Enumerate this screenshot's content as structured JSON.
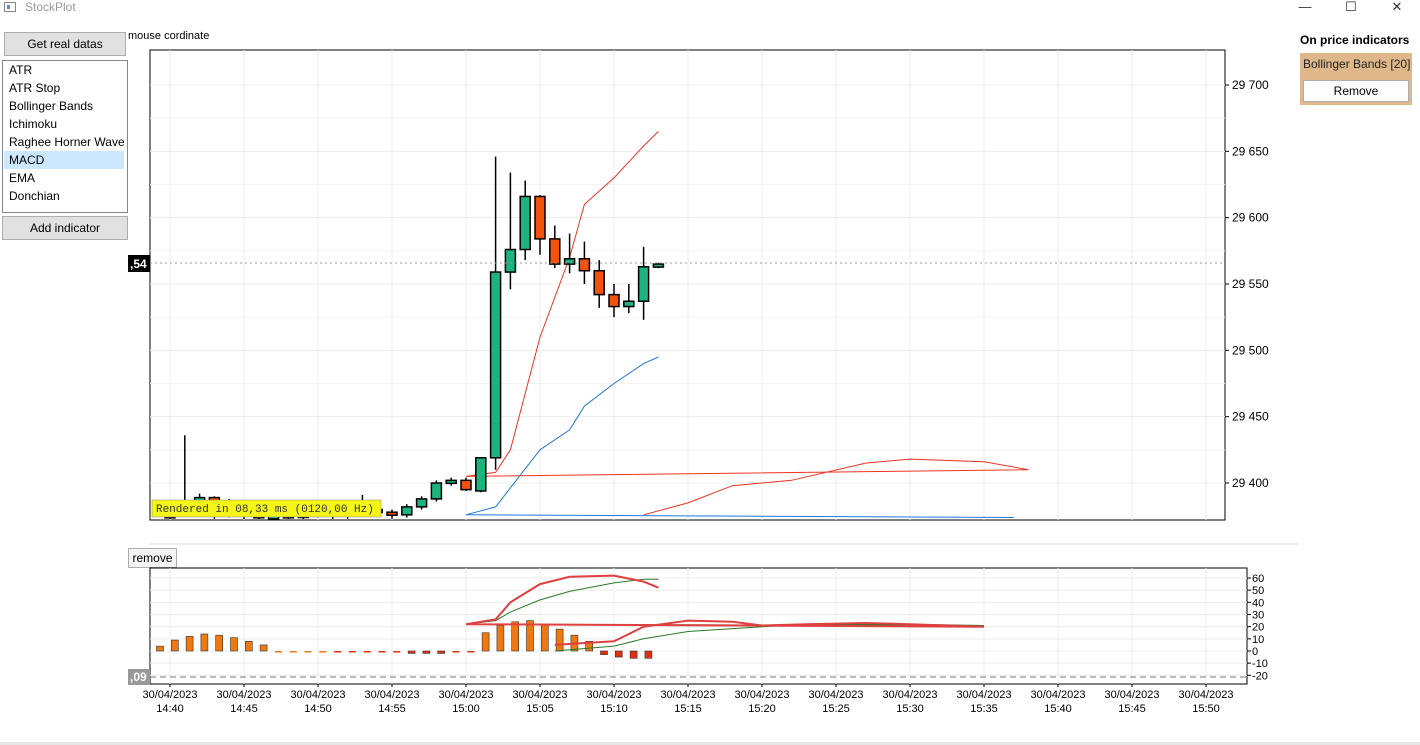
{
  "window": {
    "title": "StockPlot",
    "minimize": "—",
    "maximize": "☐",
    "close": "✕"
  },
  "toolbar": {
    "get_data_label": "Get real datas",
    "mouse_label": "mouse cordinate"
  },
  "indicator_list": {
    "items": [
      "ATR",
      "ATR Stop",
      "Bollinger Bands",
      "Ichimoku",
      "Raghee Horner Wave",
      "MACD",
      "EMA",
      "Donchian"
    ],
    "selected": "MACD",
    "add_label": "Add indicator"
  },
  "side_panel": {
    "title": "On price indicators",
    "indicator_name": "Bollinger Bands [20]",
    "remove_label": "Remove"
  },
  "sub_panel": {
    "remove_label": "remove"
  },
  "main_chart": {
    "cursor_price_label": ",54",
    "render_stats": "Rendered in 08,33 ms (0120,00 Hz)",
    "y_ticks": [
      "29 700",
      "29 650",
      "29 600",
      "29 550",
      "29 500",
      "29 450",
      "29 400"
    ]
  },
  "sub_chart": {
    "cursor_label": ",09",
    "y_ticks": [
      "60",
      "50",
      "40",
      "30",
      "20",
      "10",
      "0",
      "-10",
      "-20"
    ]
  },
  "x_axis": {
    "labels": [
      {
        "date": "30/04/2023",
        "time": "14:40"
      },
      {
        "date": "30/04/2023",
        "time": "14:45"
      },
      {
        "date": "30/04/2023",
        "time": "14:50"
      },
      {
        "date": "30/04/2023",
        "time": "14:55"
      },
      {
        "date": "30/04/2023",
        "time": "15:00"
      },
      {
        "date": "30/04/2023",
        "time": "15:05"
      },
      {
        "date": "30/04/2023",
        "time": "15:10"
      },
      {
        "date": "30/04/2023",
        "time": "15:15"
      },
      {
        "date": "30/04/2023",
        "time": "15:20"
      },
      {
        "date": "30/04/2023",
        "time": "15:25"
      },
      {
        "date": "30/04/2023",
        "time": "15:30"
      },
      {
        "date": "30/04/2023",
        "time": "15:35"
      },
      {
        "date": "30/04/2023",
        "time": "15:40"
      },
      {
        "date": "30/04/2023",
        "time": "15:45"
      },
      {
        "date": "30/04/2023",
        "time": "15:50"
      }
    ]
  },
  "colors": {
    "bull": "#1db27e",
    "bear": "#f2520c",
    "bb_upper": "#ee3322",
    "bb_lower": "#2277dd",
    "macd_line": "#e04040",
    "signal_line": "#2a7a2a",
    "hist_pos": "#f07810",
    "hist_neg": "#e03010",
    "render_bg": "#f5f51a",
    "panel_bg": "#deb88a"
  },
  "chart_data": [
    {
      "type": "candlestick",
      "title": "",
      "ylim": [
        29375,
        29728
      ],
      "candles": [
        {
          "t": "14:40",
          "o": 29376,
          "h": 29376,
          "l": 29372,
          "c": 29375
        },
        {
          "t": "14:41",
          "o": 29384,
          "h": 29436,
          "l": 29378,
          "c": 29377
        },
        {
          "t": "14:42",
          "o": 29378,
          "h": 29392,
          "l": 29377,
          "c": 29389
        },
        {
          "t": "14:43",
          "o": 29389,
          "h": 29390,
          "l": 29370,
          "c": 29376
        },
        {
          "t": "14:44",
          "o": 29380,
          "h": 29388,
          "l": 29374,
          "c": 29384
        },
        {
          "t": "14:45",
          "o": 29384,
          "h": 29386,
          "l": 29372,
          "c": 29376
        },
        {
          "t": "14:46",
          "o": 29376,
          "h": 29378,
          "l": 29370,
          "c": 29374
        },
        {
          "t": "14:47",
          "o": 29374,
          "h": 29376,
          "l": 29369,
          "c": 29375
        },
        {
          "t": "14:48",
          "o": 29375,
          "h": 29377,
          "l": 29372,
          "c": 29376
        },
        {
          "t": "14:49",
          "o": 29374,
          "h": 29386,
          "l": 29372,
          "c": 29382
        },
        {
          "t": "14:50",
          "o": 29382,
          "h": 29384,
          "l": 29374,
          "c": 29377
        },
        {
          "t": "14:51",
          "o": 29377,
          "h": 29380,
          "l": 29372,
          "c": 29379
        },
        {
          "t": "14:52",
          "o": 29376,
          "h": 29381,
          "l": 29370,
          "c": 29379
        },
        {
          "t": "14:53",
          "o": 29378,
          "h": 29391,
          "l": 29375,
          "c": 29385
        },
        {
          "t": "14:54",
          "o": 29380,
          "h": 29382,
          "l": 29375,
          "c": 29378
        },
        {
          "t": "14:55",
          "o": 29378,
          "h": 29380,
          "l": 29373,
          "c": 29376
        },
        {
          "t": "14:56",
          "o": 29376,
          "h": 29384,
          "l": 29374,
          "c": 29382
        },
        {
          "t": "14:57",
          "o": 29382,
          "h": 29390,
          "l": 29380,
          "c": 29388
        },
        {
          "t": "14:58",
          "o": 29388,
          "h": 29402,
          "l": 29386,
          "c": 29400
        },
        {
          "t": "14:59",
          "o": 29400,
          "h": 29404,
          "l": 29398,
          "c": 29402
        },
        {
          "t": "15:00",
          "o": 29402,
          "h": 29404,
          "l": 29394,
          "c": 29395
        },
        {
          "t": "15:01",
          "o": 29394,
          "h": 29418,
          "l": 29393,
          "c": 29419
        },
        {
          "t": "15:02",
          "o": 29419,
          "h": 29646,
          "l": 29410,
          "c": 29559
        },
        {
          "t": "15:03",
          "o": 29559,
          "h": 29634,
          "l": 29546,
          "c": 29576
        },
        {
          "t": "15:04",
          "o": 29576,
          "h": 29628,
          "l": 29568,
          "c": 29616
        },
        {
          "t": "15:05",
          "o": 29616,
          "h": 29617,
          "l": 29572,
          "c": 29584
        },
        {
          "t": "15:06",
          "o": 29584,
          "h": 29594,
          "l": 29562,
          "c": 29565
        },
        {
          "t": "15:07",
          "o": 29565,
          "h": 29588,
          "l": 29558,
          "c": 29569
        },
        {
          "t": "15:08",
          "o": 29569,
          "h": 29582,
          "l": 29550,
          "c": 29560
        },
        {
          "t": "15:09",
          "o": 29560,
          "h": 29568,
          "l": 29532,
          "c": 29542
        },
        {
          "t": "15:10",
          "o": 29542,
          "h": 29550,
          "l": 29525,
          "c": 29533
        },
        {
          "t": "15:11",
          "o": 29533,
          "h": 29550,
          "l": 29528,
          "c": 29537
        },
        {
          "t": "15:12",
          "o": 29537,
          "h": 29578,
          "l": 29523,
          "c": 29563
        },
        {
          "t": "15:13",
          "o": 29563,
          "h": 29566,
          "l": 29562,
          "c": 29565
        }
      ],
      "bb_upper": [
        [
          14.72,
          29376
        ],
        [
          14.75,
          29385
        ],
        [
          14.78,
          29398
        ],
        [
          14.82,
          29402
        ],
        [
          14.87,
          29415
        ],
        [
          14.9,
          29418
        ],
        [
          14.95,
          29416
        ],
        [
          14.98,
          29410
        ],
        [
          15.0,
          29405
        ],
        [
          15.02,
          29408
        ],
        [
          15.03,
          29425
        ],
        [
          15.05,
          29510
        ],
        [
          15.07,
          29570
        ],
        [
          15.08,
          29610
        ],
        [
          15.1,
          29630
        ],
        [
          15.12,
          29654
        ],
        [
          15.13,
          29665
        ]
      ],
      "bb_lower": [
        [
          14.97,
          29374
        ],
        [
          15.0,
          29376
        ],
        [
          15.02,
          29382
        ],
        [
          15.05,
          29425
        ],
        [
          15.07,
          29440
        ],
        [
          15.08,
          29458
        ],
        [
          15.1,
          29475
        ],
        [
          15.12,
          29490
        ],
        [
          15.13,
          29495
        ]
      ]
    },
    {
      "type": "macd",
      "title": "",
      "ylim": [
        -22,
        64
      ],
      "macd": [
        [
          14.66,
          5
        ],
        [
          14.7,
          8
        ],
        [
          14.72,
          20
        ],
        [
          14.75,
          25
        ],
        [
          14.78,
          24
        ],
        [
          14.8,
          21
        ],
        [
          14.83,
          22
        ],
        [
          14.87,
          23
        ],
        [
          14.9,
          22
        ],
        [
          14.95,
          20
        ],
        [
          15.0,
          22
        ],
        [
          15.02,
          26
        ],
        [
          15.03,
          40
        ],
        [
          15.05,
          55
        ],
        [
          15.07,
          61
        ],
        [
          15.1,
          62
        ],
        [
          15.12,
          57
        ],
        [
          15.13,
          52
        ]
      ],
      "signal": [
        [
          14.66,
          0
        ],
        [
          14.7,
          4
        ],
        [
          14.72,
          10
        ],
        [
          14.75,
          16
        ],
        [
          14.8,
          20
        ],
        [
          14.83,
          22
        ],
        [
          14.87,
          22
        ],
        [
          14.9,
          22
        ],
        [
          14.95,
          21
        ],
        [
          15.0,
          22
        ],
        [
          15.02,
          25
        ],
        [
          15.03,
          32
        ],
        [
          15.05,
          42
        ],
        [
          15.07,
          49
        ],
        [
          15.1,
          56
        ],
        [
          15.12,
          59
        ],
        [
          15.13,
          59
        ]
      ],
      "histogram": [
        4,
        9,
        12,
        14,
        13,
        11,
        8,
        5,
        0,
        0,
        0,
        0,
        -1,
        -1,
        -1,
        -1,
        -1,
        -2,
        -2,
        -2,
        -1,
        -1,
        15,
        21,
        24,
        25,
        22,
        18,
        13,
        8,
        -3,
        -5,
        -6,
        -6
      ]
    }
  ]
}
